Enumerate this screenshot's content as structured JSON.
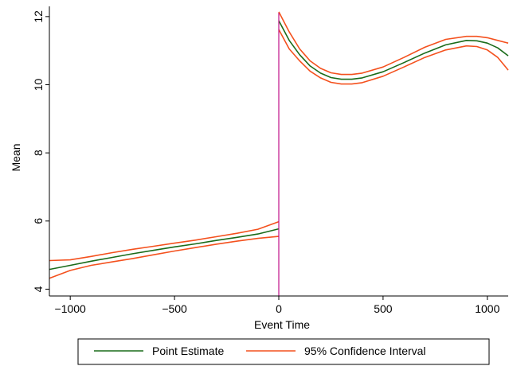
{
  "chart_data": {
    "type": "line",
    "title": "",
    "xlabel": "Event Time",
    "ylabel": "Mean",
    "xlim": [
      -1100,
      1100
    ],
    "ylim": [
      3.8,
      12.3
    ],
    "xticks": [
      -1000,
      -500,
      0,
      500,
      1000
    ],
    "xtick_labels": [
      "−1000",
      "−500",
      "0",
      "500",
      "1000"
    ],
    "yticks": [
      4,
      6,
      8,
      10,
      12
    ],
    "ytick_labels": [
      "4",
      "6",
      "8",
      "10",
      "12"
    ],
    "cutoff_x": 0,
    "legend_position": "bottom",
    "series": [
      {
        "name": "Point Estimate",
        "color": "#1a6b1a",
        "segments": [
          {
            "x": [
              -1100,
              -1000,
              -900,
              -800,
              -700,
              -600,
              -500,
              -400,
              -300,
              -200,
              -100,
              0
            ],
            "y": [
              4.58,
              4.7,
              4.82,
              4.93,
              5.04,
              5.14,
              5.24,
              5.33,
              5.43,
              5.52,
              5.62,
              5.77
            ]
          },
          {
            "x": [
              0,
              50,
              100,
              150,
              200,
              250,
              300,
              350,
              400,
              500,
              600,
              700,
              800,
              900,
              950,
              1000,
              1050,
              1100
            ],
            "y": [
              11.88,
              11.3,
              10.88,
              10.55,
              10.34,
              10.21,
              10.16,
              10.16,
              10.2,
              10.38,
              10.65,
              10.93,
              11.17,
              11.3,
              11.29,
              11.22,
              11.08,
              10.85
            ]
          }
        ]
      },
      {
        "name": "95% Confidence Interval",
        "color": "#f4511e",
        "segments": [
          {
            "x": [
              -1100,
              -1000,
              -900,
              -800,
              -700,
              -600,
              -500,
              -400,
              -300,
              -200,
              -100,
              0
            ],
            "y": [
              4.84,
              4.86,
              4.96,
              5.07,
              5.17,
              5.26,
              5.35,
              5.44,
              5.54,
              5.64,
              5.76,
              5.98
            ]
          },
          {
            "x": [
              -1100,
              -1000,
              -900,
              -800,
              -700,
              -600,
              -500,
              -400,
              -300,
              -200,
              -100,
              0
            ],
            "y": [
              4.32,
              4.55,
              4.7,
              4.8,
              4.9,
              5.01,
              5.12,
              5.22,
              5.32,
              5.41,
              5.49,
              5.55
            ]
          },
          {
            "x": [
              0,
              50,
              100,
              150,
              200,
              250,
              300,
              350,
              400,
              500,
              600,
              700,
              800,
              900,
              950,
              1000,
              1050,
              1100
            ],
            "y": [
              12.14,
              11.55,
              11.05,
              10.7,
              10.48,
              10.35,
              10.3,
              10.3,
              10.34,
              10.52,
              10.8,
              11.1,
              11.33,
              11.42,
              11.42,
              11.38,
              11.3,
              11.22
            ]
          },
          {
            "x": [
              0,
              50,
              100,
              150,
              200,
              250,
              300,
              350,
              400,
              500,
              600,
              700,
              800,
              900,
              950,
              1000,
              1050,
              1100
            ],
            "y": [
              11.62,
              11.05,
              10.7,
              10.4,
              10.2,
              10.07,
              10.02,
              10.02,
              10.06,
              10.25,
              10.52,
              10.8,
              11.02,
              11.14,
              11.12,
              11.02,
              10.8,
              10.43
            ]
          }
        ]
      }
    ],
    "cutoff_color": "#c0118a"
  }
}
